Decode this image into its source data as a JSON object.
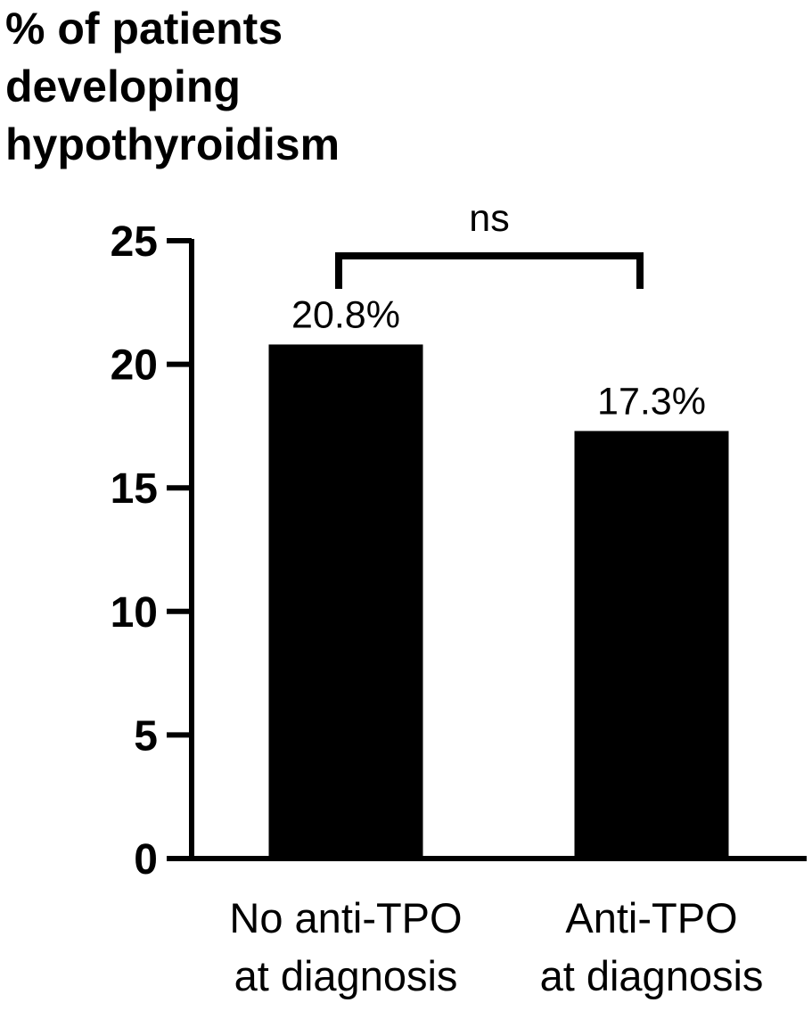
{
  "chart_data": {
    "type": "bar",
    "title": "",
    "xlabel": "",
    "ylabel_lines": [
      "% of patients",
      "developing",
      "hypothyroidism"
    ],
    "categories": [
      {
        "lines": [
          "No anti-TPO",
          "at diagnosis"
        ]
      },
      {
        "lines": [
          "Anti-TPO",
          "at diagnosis"
        ]
      }
    ],
    "values": [
      20.8,
      17.3
    ],
    "data_labels": [
      "20.8%",
      "17.3%"
    ],
    "ylim": [
      0,
      25
    ],
    "yticks": [
      0,
      5,
      10,
      15,
      20,
      25
    ],
    "grid": false,
    "bar_color": "#000000",
    "annotation": {
      "text": "ns",
      "between": [
        0,
        1
      ]
    }
  }
}
